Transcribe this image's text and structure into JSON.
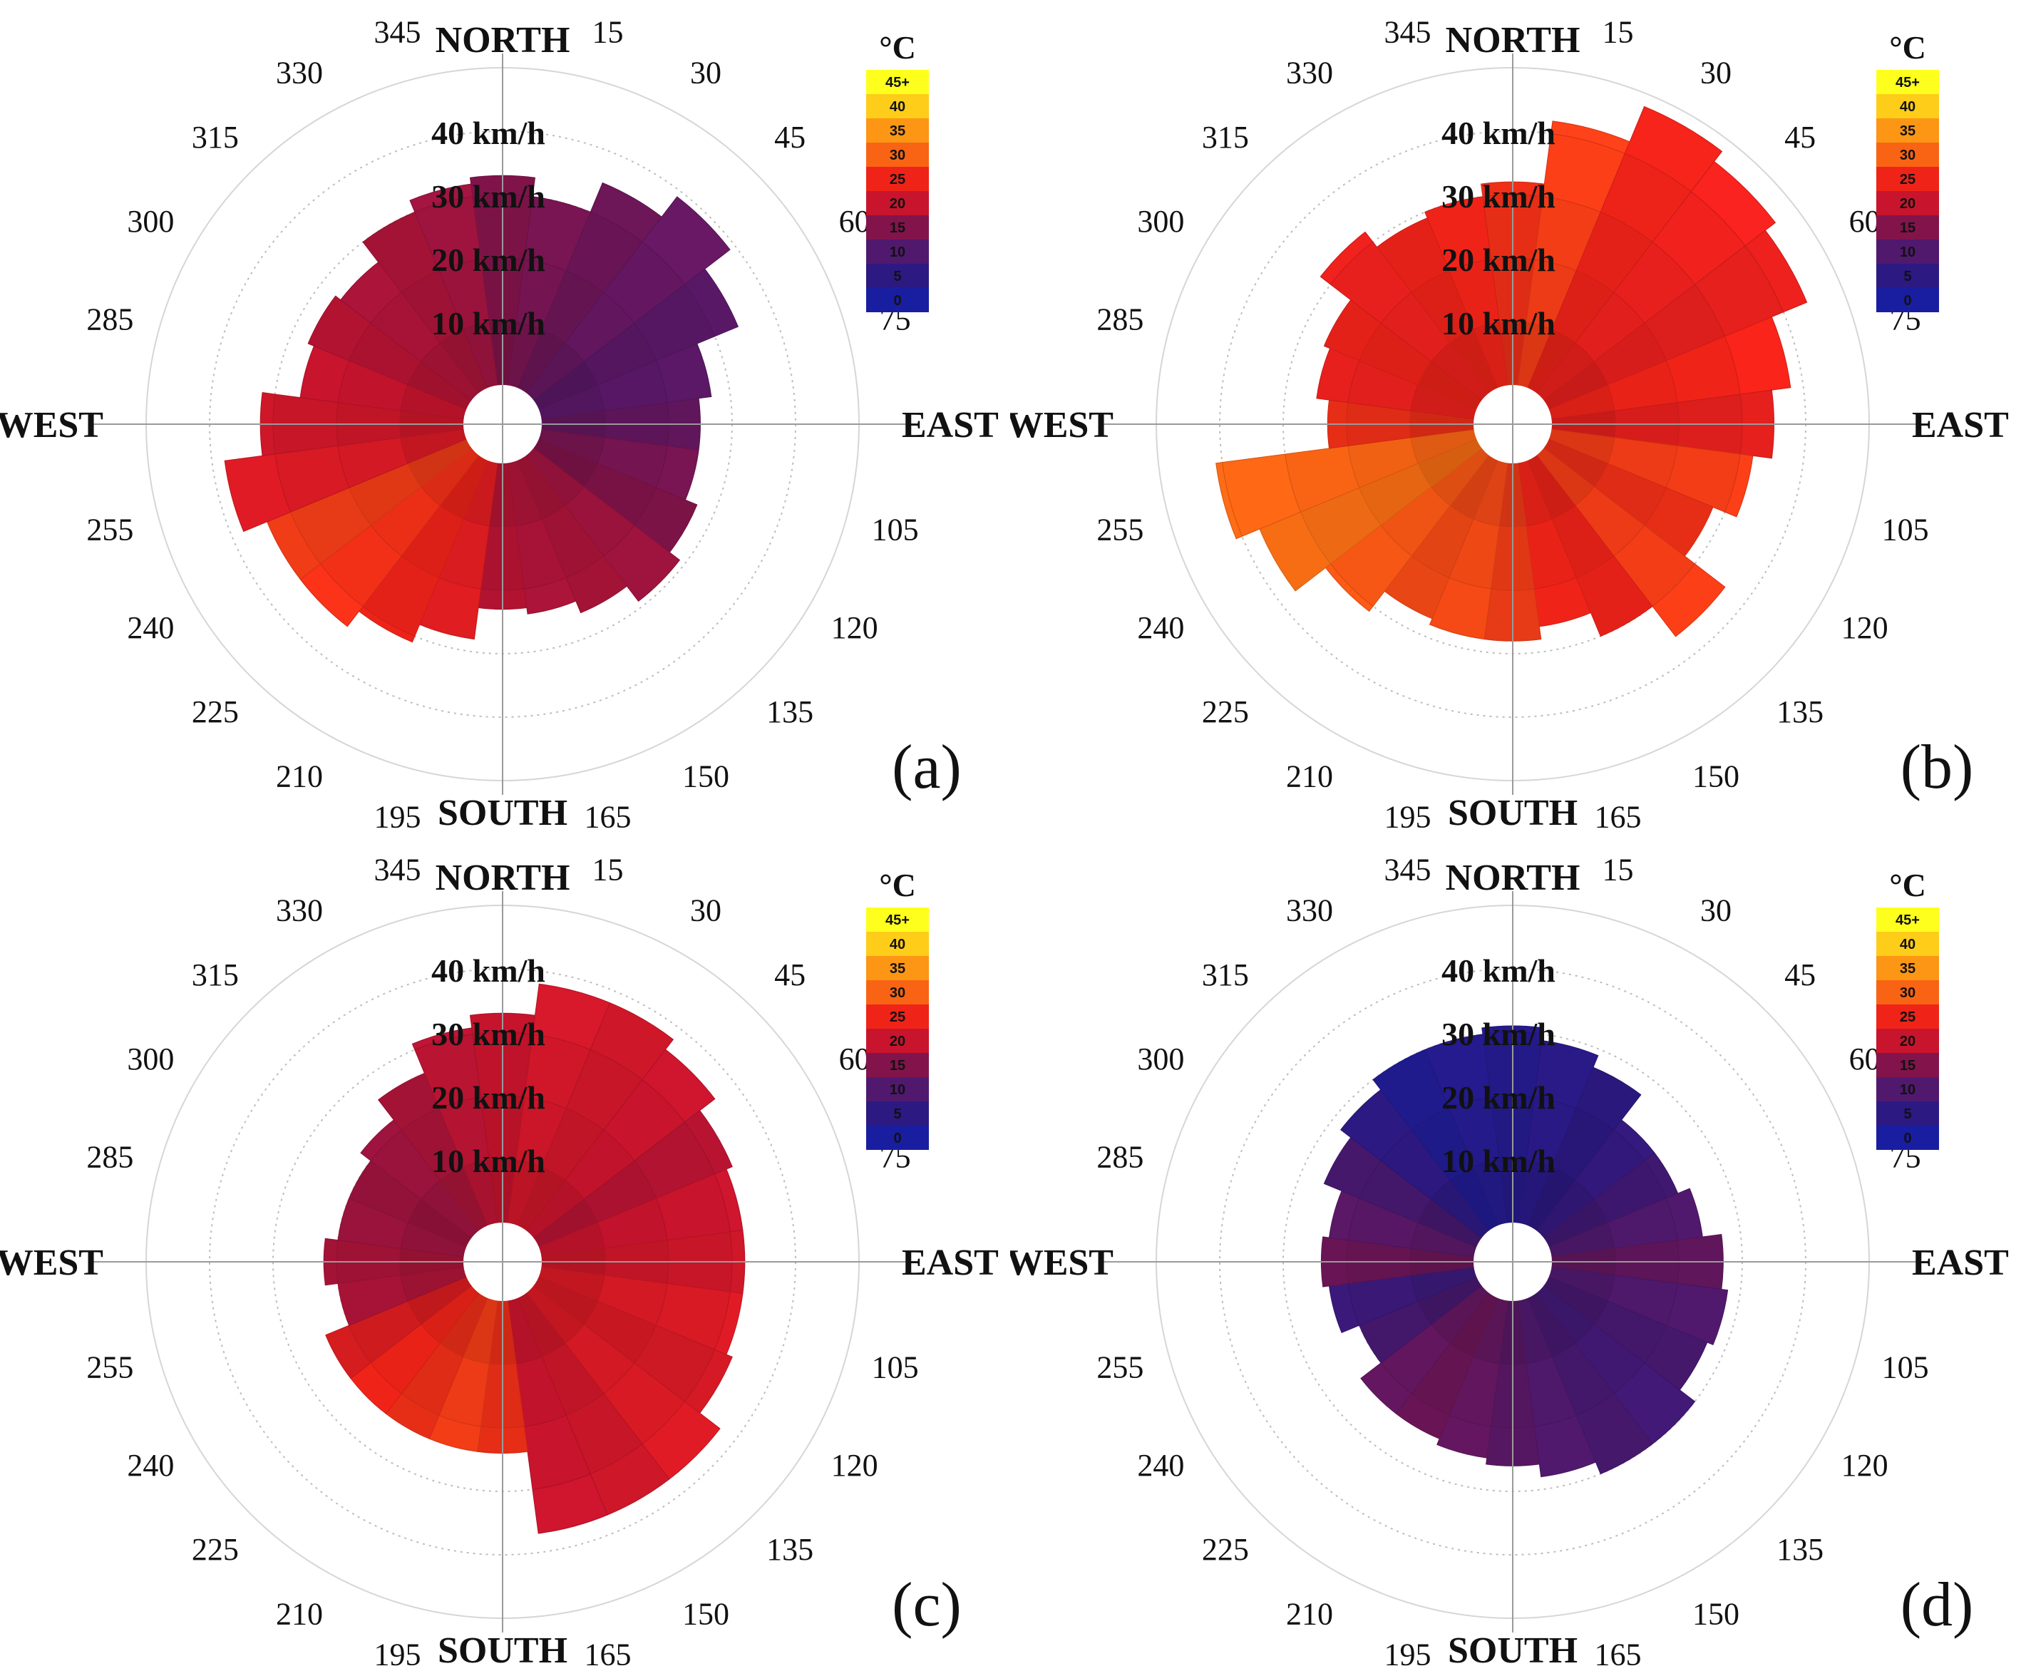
{
  "figure": {
    "description_labels": {
      "north": "NORTH",
      "south": "SOUTH",
      "east": "EAST",
      "west": "WEST"
    }
  },
  "chart_data": [
    {
      "type": "polar-bar",
      "panel_label": "(a)",
      "cardinals": {
        "north": "NORTH",
        "south": "SOUTH",
        "east": "EAST",
        "west": "WEST"
      },
      "direction_ticks": [
        "15",
        "30",
        "45",
        "60",
        "75",
        "105",
        "120",
        "135",
        "150",
        "165",
        "195",
        "210",
        "225",
        "240",
        "255",
        "285",
        "300",
        "315",
        "330",
        "345"
      ],
      "ring_labels": [
        "10 km/h",
        "20 km/h",
        "30 km/h",
        "40 km/h"
      ],
      "legend": {
        "unit": "°C",
        "ticks": [
          "45+",
          "40",
          "35",
          "30",
          "25",
          "20",
          "15",
          "10",
          "5",
          "0"
        ]
      },
      "radial_max": 50,
      "directions_deg": [
        0,
        15,
        30,
        45,
        60,
        75,
        90,
        105,
        120,
        135,
        150,
        165,
        180,
        195,
        210,
        225,
        240,
        255,
        270,
        285,
        300,
        315,
        330,
        345
      ],
      "max_speed_kmh": [
        33,
        30,
        35,
        39,
        34,
        27,
        25,
        25,
        27,
        29,
        26,
        24,
        23,
        28,
        31,
        34,
        34,
        38,
        32,
        26,
        27,
        26,
        30,
        32
      ],
      "temp_c": [
        15,
        14,
        13,
        12,
        11,
        11,
        12,
        14,
        15,
        17,
        18,
        18,
        19,
        23,
        25,
        26,
        27,
        22,
        21,
        20,
        19,
        18,
        18,
        17
      ]
    },
    {
      "type": "polar-bar",
      "panel_label": "(b)",
      "cardinals": {
        "north": "NORTH",
        "south": "SOUTH",
        "east": "EAST",
        "west": "WEST"
      },
      "direction_ticks": [
        "15",
        "30",
        "45",
        "60",
        "75",
        "105",
        "120",
        "135",
        "150",
        "165",
        "195",
        "210",
        "225",
        "240",
        "255",
        "285",
        "300",
        "315",
        "330",
        "345"
      ],
      "ring_labels": [
        "10 km/h",
        "20 km/h",
        "30 km/h",
        "40 km/h"
      ],
      "legend": {
        "unit": "°C",
        "ticks": [
          "45+",
          "40",
          "35",
          "30",
          "25",
          "20",
          "15",
          "10",
          "5",
          "0"
        ]
      },
      "radial_max": 50,
      "directions_deg": [
        0,
        15,
        30,
        45,
        60,
        75,
        90,
        105,
        120,
        135,
        150,
        165,
        180,
        195,
        210,
        225,
        240,
        255,
        270,
        285,
        300,
        315,
        330,
        345
      ],
      "max_speed_kmh": [
        32,
        42,
        48,
        46,
        44,
        38,
        35,
        32,
        28,
        36,
        30,
        26,
        28,
        28,
        27,
        31,
        37,
        41,
        23,
        25,
        26,
        32,
        29,
        30
      ],
      "temp_c": [
        26,
        27,
        25,
        24,
        24,
        25,
        24,
        27,
        26,
        27,
        25,
        25,
        27,
        28,
        28,
        29,
        31,
        30,
        26,
        24,
        25,
        24,
        25,
        25
      ]
    },
    {
      "type": "polar-bar",
      "panel_label": "(c)",
      "cardinals": {
        "north": "NORTH",
        "south": "SOUTH",
        "east": "EAST",
        "west": "WEST"
      },
      "direction_ticks": [
        "15",
        "30",
        "45",
        "60",
        "75",
        "105",
        "120",
        "135",
        "150",
        "165",
        "195",
        "210",
        "225",
        "240",
        "255",
        "285",
        "300",
        "315",
        "330",
        "345"
      ],
      "ring_labels": [
        "10 km/h",
        "20 km/h",
        "30 km/h",
        "40 km/h"
      ],
      "legend": {
        "unit": "°C",
        "ticks": [
          "45+",
          "40",
          "35",
          "30",
          "25",
          "20",
          "15",
          "10",
          "5",
          "0"
        ]
      },
      "radial_max": 50,
      "directions_deg": [
        0,
        15,
        30,
        45,
        60,
        75,
        90,
        105,
        120,
        135,
        150,
        165,
        180,
        195,
        210,
        225,
        240,
        255,
        270,
        285,
        300,
        315,
        330,
        345
      ],
      "max_speed_kmh": [
        33,
        38,
        38,
        36,
        33,
        32,
        32,
        32,
        33,
        37,
        37,
        37,
        24,
        24,
        24,
        24,
        24,
        20,
        22,
        20,
        20,
        22,
        26,
        31
      ],
      "temp_c": [
        20,
        21,
        21,
        20,
        19,
        20,
        21,
        22,
        22,
        22,
        21,
        20,
        26,
        27,
        26,
        25,
        23,
        18,
        18,
        17,
        17,
        17,
        18,
        19
      ]
    },
    {
      "type": "polar-bar",
      "panel_label": "(d)",
      "cardinals": {
        "north": "NORTH",
        "south": "SOUTH",
        "east": "EAST",
        "west": "WEST"
      },
      "direction_ticks": [
        "15",
        "30",
        "45",
        "60",
        "75",
        "105",
        "120",
        "135",
        "150",
        "165",
        "195",
        "210",
        "225",
        "240",
        "255",
        "285",
        "300",
        "315",
        "330",
        "345"
      ],
      "ring_labels": [
        "10 km/h",
        "20 km/h",
        "30 km/h",
        "40 km/h"
      ],
      "legend": {
        "unit": "°C",
        "ticks": [
          "45+",
          "40",
          "35",
          "30",
          "25",
          "20",
          "15",
          "10",
          "5",
          "0"
        ]
      },
      "radial_max": 50,
      "directions_deg": [
        0,
        15,
        30,
        45,
        60,
        75,
        90,
        105,
        120,
        135,
        150,
        165,
        180,
        195,
        210,
        225,
        240,
        255,
        270,
        285,
        300,
        315,
        330,
        345
      ],
      "max_speed_kmh": [
        31,
        29,
        27,
        22,
        22,
        24,
        27,
        28,
        27,
        30,
        30,
        28,
        26,
        25,
        24,
        24,
        20,
        23,
        24,
        23,
        26,
        28,
        30,
        30
      ],
      "temp_c": [
        3,
        4,
        5,
        6,
        8,
        10,
        12,
        10,
        9,
        8,
        9,
        10,
        11,
        12,
        13,
        12,
        9,
        7,
        13,
        11,
        9,
        5,
        2,
        3
      ]
    }
  ]
}
